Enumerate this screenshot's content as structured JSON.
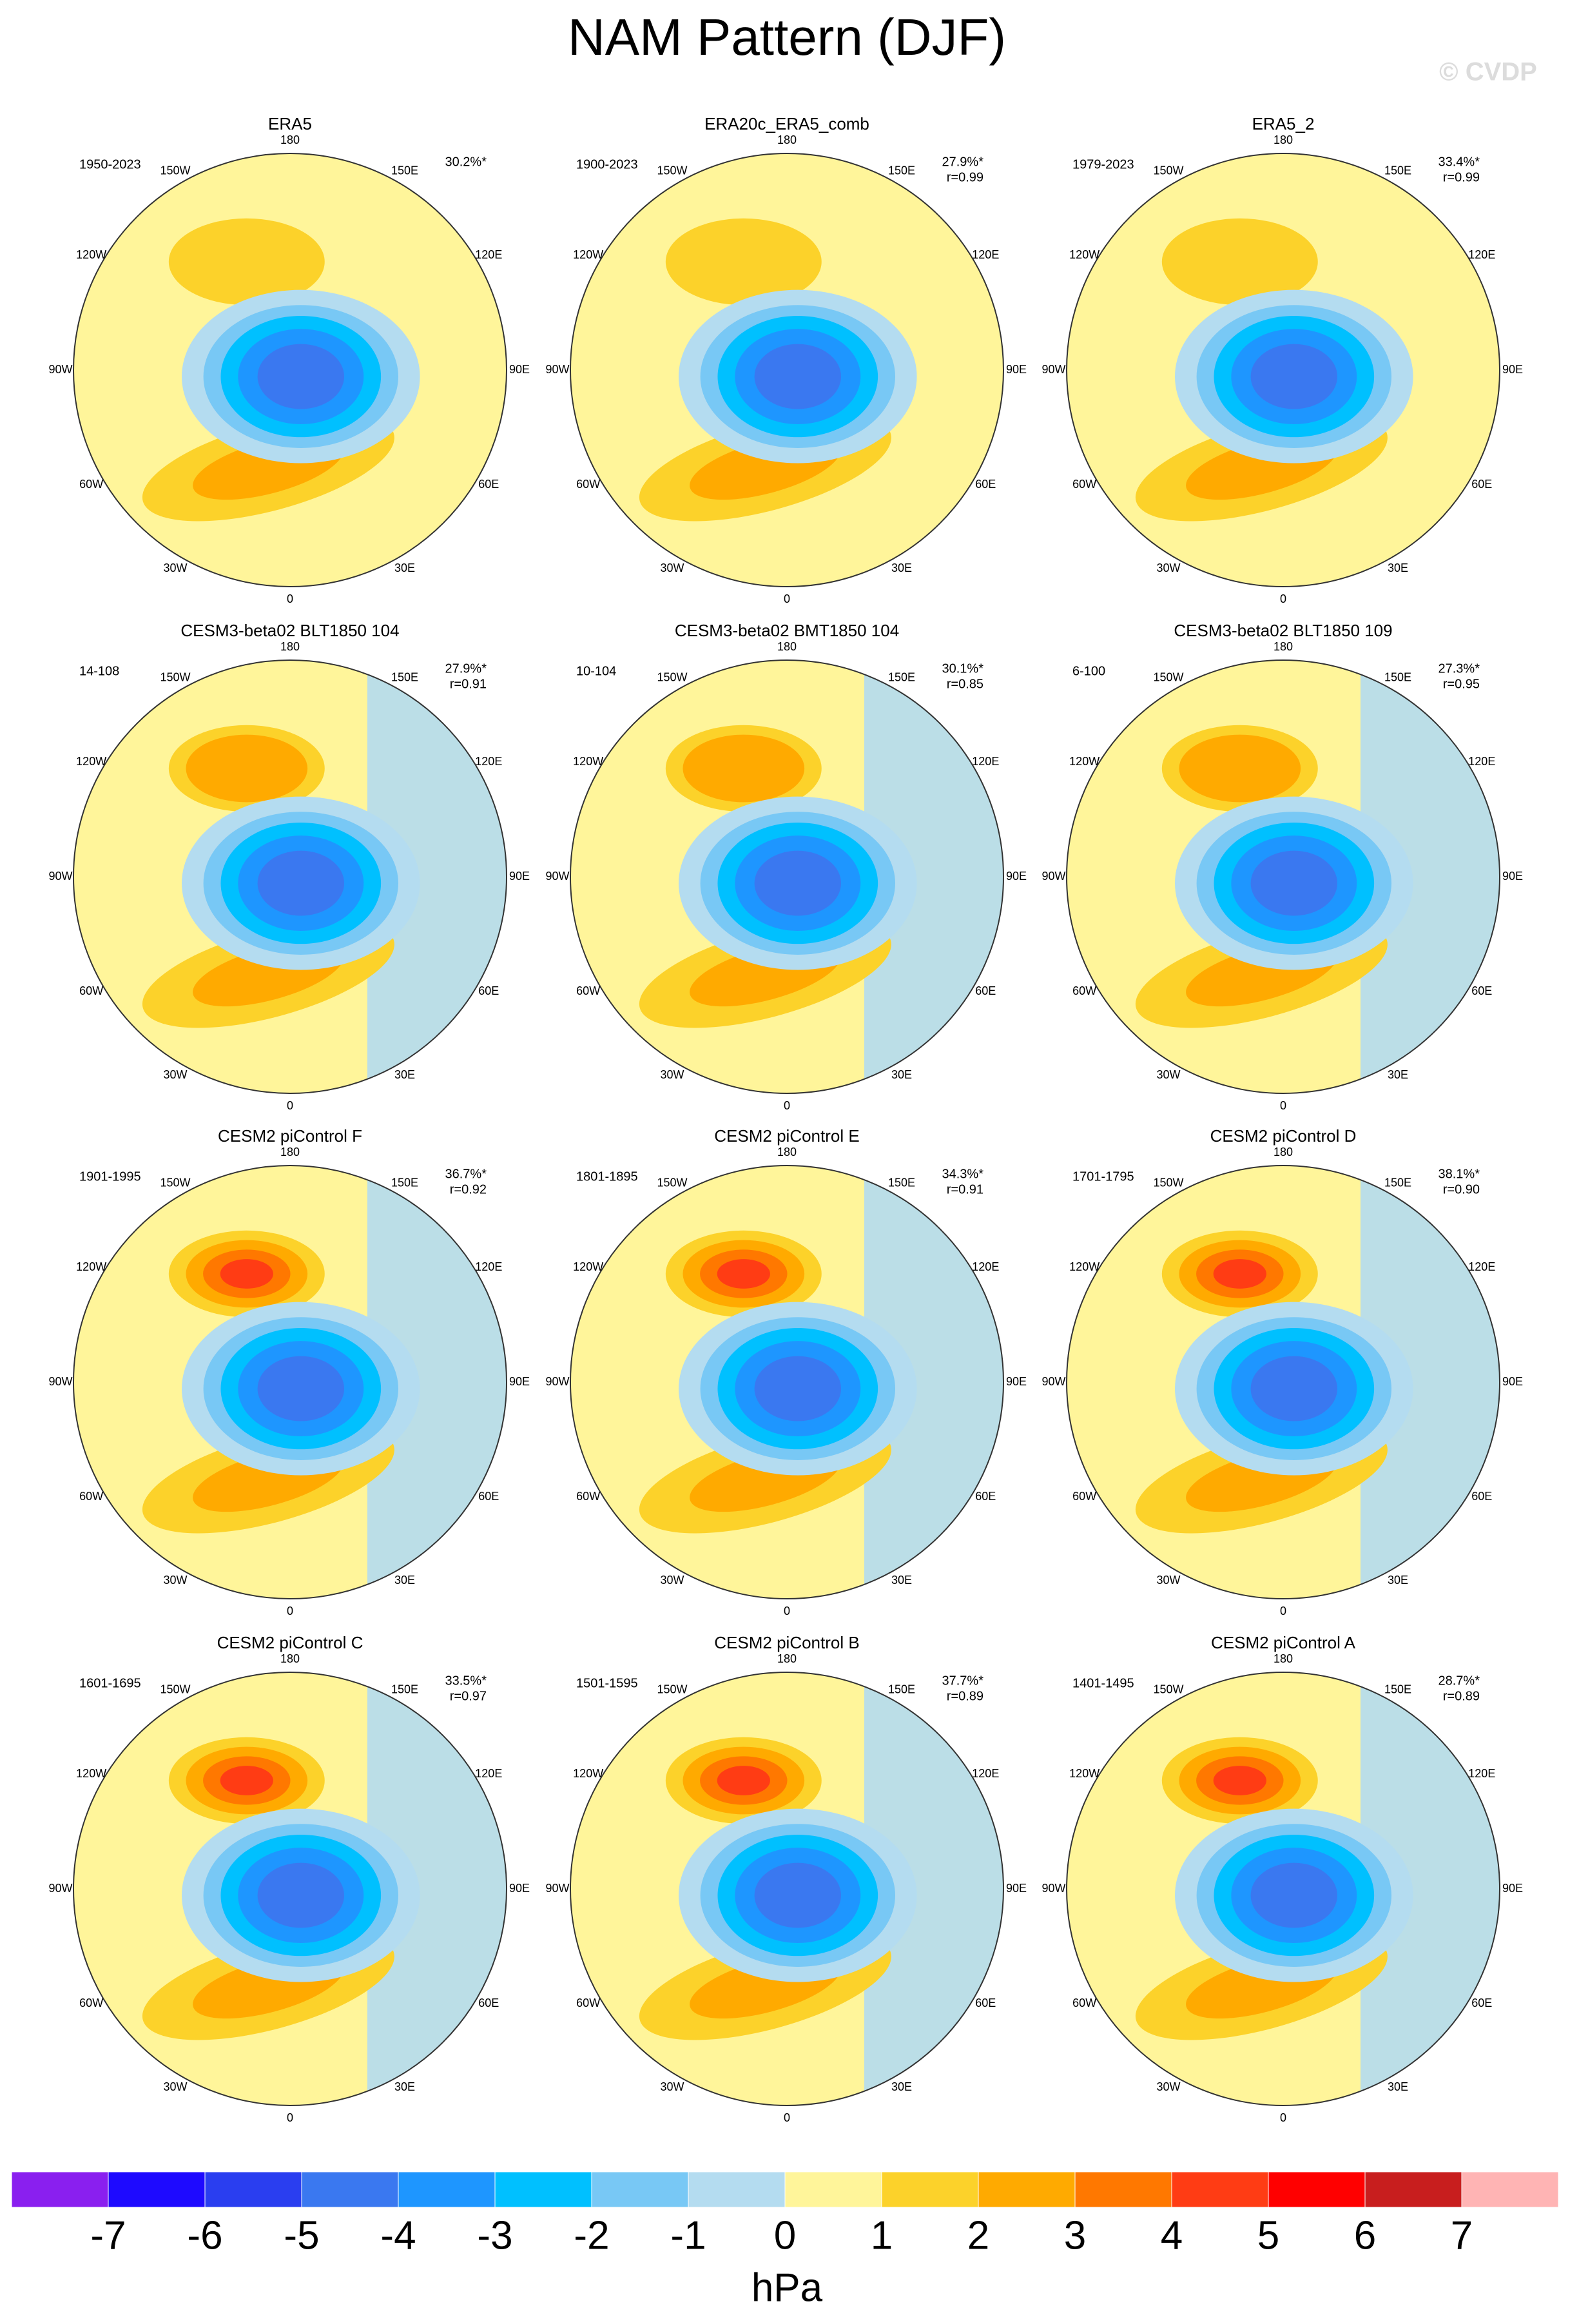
{
  "title": "NAM Pattern (DJF)",
  "watermark": "© CVDP",
  "lon_labels": [
    "180",
    "150E",
    "120E",
    "90E",
    "60E",
    "30E",
    "0",
    "30W",
    "60W",
    "90W",
    "120W",
    "150W"
  ],
  "panels": [
    {
      "title": "ERA5",
      "period": "1950-2023",
      "pct": "30.2%*"
    },
    {
      "title": "ERA20c_ERA5_comb",
      "period": "1900-2023",
      "pct": "27.9%*",
      "r": "r=0.99"
    },
    {
      "title": "ERA5_2",
      "period": "1979-2023",
      "pct": "33.4%*",
      "r": "r=0.99"
    },
    {
      "title": "CESM3-beta02 BLT1850 104",
      "period": "14-108",
      "pct": "27.9%*",
      "r": "r=0.91"
    },
    {
      "title": "CESM3-beta02 BMT1850 104",
      "period": "10-104",
      "pct": "30.1%*",
      "r": "r=0.85"
    },
    {
      "title": "CESM3-beta02 BLT1850 109",
      "period": "6-100",
      "pct": "27.3%*",
      "r": "r=0.95"
    },
    {
      "title": "CESM2 piControl F",
      "period": "1901-1995",
      "pct": "36.7%*",
      "r": "r=0.92"
    },
    {
      "title": "CESM2 piControl E",
      "period": "1801-1895",
      "pct": "34.3%*",
      "r": "r=0.91"
    },
    {
      "title": "CESM2 piControl D",
      "period": "1701-1795",
      "pct": "38.1%*",
      "r": "r=0.90"
    },
    {
      "title": "CESM2 piControl C",
      "period": "1601-1695",
      "pct": "33.5%*",
      "r": "r=0.97"
    },
    {
      "title": "CESM2 piControl B",
      "period": "1501-1595",
      "pct": "37.7%*",
      "r": "r=0.89"
    },
    {
      "title": "CESM2 piControl A",
      "period": "1401-1495",
      "pct": "28.7%*",
      "r": "r=0.89"
    }
  ],
  "colorbar": {
    "ticks": [
      -7,
      -6,
      -5,
      -4,
      -3,
      -2,
      -1,
      0,
      1,
      2,
      3,
      4,
      5,
      6,
      7
    ],
    "colors": [
      "#8a1fef",
      "#1e0aff",
      "#2a3ef0",
      "#3a78f0",
      "#1e96ff",
      "#00c0ff",
      "#78c8f5",
      "#b4dcf0",
      "#fff59a",
      "#fcd22a",
      "#ffaa00",
      "#ff7800",
      "#ff3c14",
      "#ff0000",
      "#c81e1e",
      "#ffb4b4"
    ],
    "unit": "hPa"
  }
}
